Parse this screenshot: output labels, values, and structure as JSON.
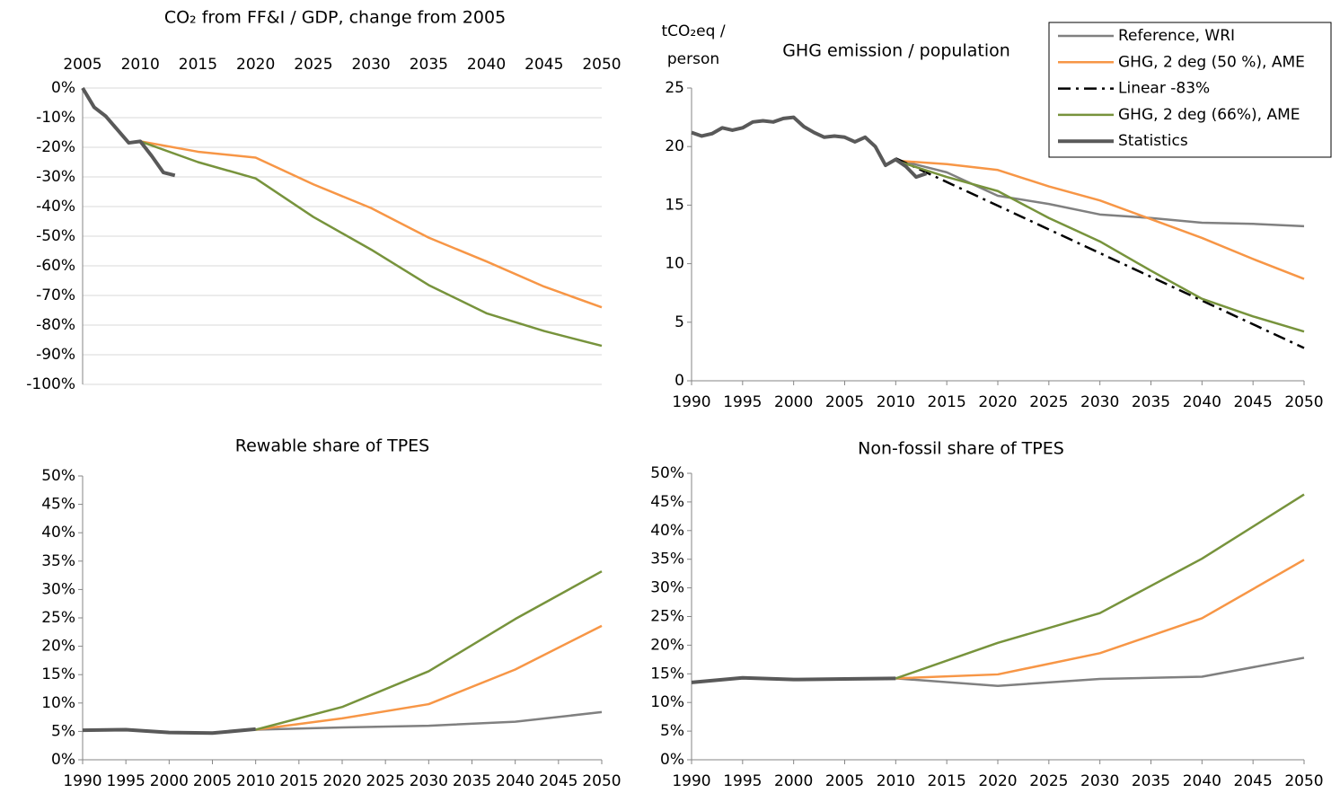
{
  "chart_data": [
    {
      "type": "line",
      "title": "CO₂ from FF&I / GDP, change from 2005",
      "grid": true,
      "xaxis_position": "top",
      "xlim": [
        2005,
        2050
      ],
      "xticks": [
        2005,
        2010,
        2015,
        2020,
        2025,
        2030,
        2035,
        2040,
        2045,
        2050
      ],
      "ylim": [
        -100,
        0
      ],
      "yticks": [
        {
          "value": 0,
          "label": "0%"
        },
        {
          "value": -10,
          "label": "-10%"
        },
        {
          "value": -20,
          "label": "-20%"
        },
        {
          "value": -30,
          "label": "-30%"
        },
        {
          "value": -40,
          "label": "-40%"
        },
        {
          "value": -50,
          "label": "-50%"
        },
        {
          "value": -60,
          "label": "-60%"
        },
        {
          "value": -70,
          "label": "-70%"
        },
        {
          "value": -80,
          "label": "-80%"
        },
        {
          "value": -90,
          "label": "-90%"
        },
        {
          "value": -100,
          "label": "-100%"
        }
      ],
      "series": [
        {
          "color": "#f79646",
          "x": [
            2010,
            2015,
            2020,
            2025,
            2030,
            2035,
            2040,
            2045,
            2050
          ],
          "values": [
            -18,
            -21.5,
            -23.5,
            -32.5,
            -40.5,
            -50.5,
            -58.5,
            -67,
            -74
          ]
        },
        {
          "color": "#77933c",
          "x": [
            2010,
            2015,
            2020,
            2025,
            2030,
            2035,
            2040,
            2045,
            2050
          ],
          "values": [
            -18,
            -25,
            -30.5,
            -43.5,
            -54.5,
            -66.5,
            -76,
            -82,
            -87
          ]
        },
        {
          "color": "#595959",
          "linewidth": 4,
          "x": [
            2005,
            2006,
            2007,
            2008,
            2009,
            2010,
            2011,
            2012,
            2013
          ],
          "values": [
            0,
            -6.5,
            -9.5,
            -14,
            -18.5,
            -18,
            -23,
            -28.5,
            -29.5
          ]
        }
      ]
    },
    {
      "type": "line",
      "title": "GHG emission / population",
      "y_label": [
        "tCO₂eq /",
        "person"
      ],
      "grid": false,
      "legend": "upper right",
      "xlim": [
        1990,
        2050
      ],
      "xticks": [
        1990,
        1995,
        2000,
        2005,
        2010,
        2015,
        2020,
        2025,
        2030,
        2035,
        2040,
        2045,
        2050
      ],
      "ylim": [
        0,
        25
      ],
      "yticks": [
        0,
        5,
        10,
        15,
        20,
        25
      ],
      "series": [
        {
          "name": "Reference, WRI",
          "color": "#808080",
          "x": [
            2010,
            2015,
            2020,
            2025,
            2030,
            2035,
            2040,
            2045,
            2050
          ],
          "values": [
            18.9,
            17.8,
            15.8,
            15.1,
            14.2,
            13.9,
            13.5,
            13.4,
            13.2
          ]
        },
        {
          "name": "GHG, 2 deg (50 %), AME",
          "color": "#f79646",
          "x": [
            2010,
            2015,
            2020,
            2025,
            2030,
            2035,
            2040,
            2045,
            2050
          ],
          "values": [
            18.8,
            18.5,
            18.0,
            16.6,
            15.4,
            13.8,
            12.2,
            10.4,
            8.7
          ]
        },
        {
          "name": "Linear -83%",
          "color": "#000000",
          "dash": "dashdot",
          "x": [
            2010,
            2050
          ],
          "values": [
            19.0,
            2.8
          ]
        },
        {
          "name": "GHG, 2 deg (66%), AME",
          "color": "#77933c",
          "x": [
            2010,
            2015,
            2020,
            2025,
            2030,
            2035,
            2040,
            2045,
            2050
          ],
          "values": [
            18.8,
            17.4,
            16.2,
            13.9,
            11.9,
            9.4,
            7.0,
            5.5,
            4.2
          ]
        },
        {
          "name": "Statistics",
          "color": "#595959",
          "linewidth": 4,
          "x": [
            1990,
            1991,
            1992,
            1993,
            1994,
            1995,
            1996,
            1997,
            1998,
            1999,
            2000,
            2001,
            2002,
            2003,
            2004,
            2005,
            2006,
            2007,
            2008,
            2009,
            2010,
            2011,
            2012,
            2013
          ],
          "values": [
            21.2,
            20.9,
            21.1,
            21.6,
            21.4,
            21.6,
            22.1,
            22.2,
            22.1,
            22.4,
            22.5,
            21.7,
            21.2,
            20.8,
            20.9,
            20.8,
            20.4,
            20.8,
            20.0,
            18.4,
            18.9,
            18.3,
            17.4,
            17.7
          ]
        }
      ]
    },
    {
      "type": "line",
      "title": "Rewable share of TPES",
      "grid": false,
      "xlim": [
        1990,
        2050
      ],
      "xticks": [
        1990,
        1995,
        2000,
        2005,
        2010,
        2015,
        2020,
        2025,
        2030,
        2035,
        2040,
        2045,
        2050
      ],
      "ylim": [
        0,
        50
      ],
      "yticks": [
        {
          "value": 0,
          "label": "0%"
        },
        {
          "value": 5,
          "label": "5%"
        },
        {
          "value": 10,
          "label": "10%"
        },
        {
          "value": 15,
          "label": "15%"
        },
        {
          "value": 20,
          "label": "20%"
        },
        {
          "value": 25,
          "label": "25%"
        },
        {
          "value": 30,
          "label": "30%"
        },
        {
          "value": 35,
          "label": "35%"
        },
        {
          "value": 40,
          "label": "40%"
        },
        {
          "value": 45,
          "label": "45%"
        },
        {
          "value": 50,
          "label": "50%"
        }
      ],
      "series": [
        {
          "color": "#808080",
          "x": [
            2010,
            2020,
            2030,
            2040,
            2050
          ],
          "values": [
            5.3,
            5.7,
            6.0,
            6.7,
            8.4
          ]
        },
        {
          "color": "#f79646",
          "x": [
            2010,
            2020,
            2030,
            2040,
            2050
          ],
          "values": [
            5.3,
            7.3,
            9.8,
            15.9,
            23.6
          ]
        },
        {
          "color": "#77933c",
          "x": [
            2010,
            2020,
            2030,
            2040,
            2050
          ],
          "values": [
            5.3,
            9.3,
            15.6,
            24.8,
            33.2
          ]
        },
        {
          "color": "#595959",
          "linewidth": 4,
          "x": [
            1990,
            1995,
            2000,
            2005,
            2010
          ],
          "values": [
            5.2,
            5.3,
            4.8,
            4.7,
            5.4
          ]
        }
      ]
    },
    {
      "type": "line",
      "title": "Non-fossil share of TPES",
      "grid": false,
      "xlim": [
        1990,
        2050
      ],
      "xticks": [
        1990,
        1995,
        2000,
        2005,
        2010,
        2015,
        2020,
        2025,
        2030,
        2035,
        2040,
        2045,
        2050
      ],
      "ylim": [
        0,
        50
      ],
      "yticks": [
        {
          "value": 0,
          "label": "0%"
        },
        {
          "value": 5,
          "label": "5%"
        },
        {
          "value": 10,
          "label": "10%"
        },
        {
          "value": 15,
          "label": "15%"
        },
        {
          "value": 20,
          "label": "20%"
        },
        {
          "value": 25,
          "label": "25%"
        },
        {
          "value": 30,
          "label": "30%"
        },
        {
          "value": 35,
          "label": "35%"
        },
        {
          "value": 40,
          "label": "40%"
        },
        {
          "value": 45,
          "label": "45%"
        },
        {
          "value": 50,
          "label": "50%"
        }
      ],
      "series": [
        {
          "color": "#808080",
          "x": [
            2010,
            2020,
            2030,
            2040,
            2050
          ],
          "values": [
            14.2,
            12.9,
            14.1,
            14.5,
            17.8
          ]
        },
        {
          "color": "#f79646",
          "x": [
            2010,
            2020,
            2030,
            2040,
            2050
          ],
          "values": [
            14.2,
            14.9,
            18.6,
            24.7,
            34.9
          ]
        },
        {
          "color": "#77933c",
          "x": [
            2010,
            2020,
            2030,
            2040,
            2050
          ],
          "values": [
            14.2,
            20.4,
            25.6,
            35.1,
            46.3
          ]
        },
        {
          "color": "#595959",
          "linewidth": 4,
          "x": [
            1990,
            1995,
            2000,
            2005,
            2010
          ],
          "values": [
            13.5,
            14.3,
            14.0,
            14.1,
            14.2
          ]
        }
      ]
    }
  ]
}
